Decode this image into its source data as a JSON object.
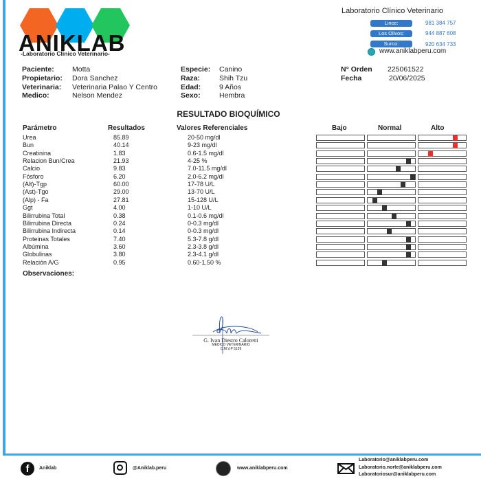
{
  "brand": {
    "name": "ANIKLAB",
    "tagline": "-Laboratorio Clinico Veterinario-",
    "hex_colors": [
      "#f26522",
      "#00aeef",
      "#22c55e"
    ]
  },
  "lab": {
    "title": "Laboratorio Clínico Veterinario",
    "branches": [
      {
        "label": "Lince:",
        "phone": "981 384 757"
      },
      {
        "label": "Los Olivos:",
        "phone": "944 887 608"
      },
      {
        "label": "Surco:",
        "phone": "920 634 733"
      }
    ],
    "website": "www.aniklabperu.com"
  },
  "patient": {
    "paciente_label": "Paciente:",
    "paciente": "Motta",
    "propietario_label": "Propietario:",
    "propietario": "Dora Sanchez",
    "veterinaria_label": "Veterinaria:",
    "veterinaria": "Veterinaria Palao Y Centro",
    "medico_label": "Medico:",
    "medico": "Nelson Mendez",
    "especie_label": "Especie:",
    "especie": "Canino",
    "raza_label": "Raza:",
    "raza": "Shih Tzu",
    "edad_label": "Edad:",
    "edad": "9 Años",
    "sexo_label": "Sexo:",
    "sexo": "Hembra",
    "orden_label": "N° Orden",
    "orden": "225061522",
    "fecha_label": "Fecha",
    "fecha": "20/06/2025"
  },
  "report": {
    "title": "RESULTADO BIOQUÍMICO",
    "headers": {
      "param": "Parámetro",
      "result": "Resultados",
      "ref": "Valores Referenciales",
      "low": "Bajo",
      "normal": "Normal",
      "high": "Alto"
    },
    "rows": [
      {
        "param": "Urea",
        "result": "85.89",
        "ref": "20-50 mg/dl",
        "level": "Alto",
        "marker": 0.78
      },
      {
        "param": "Bun",
        "result": "40.14",
        "ref": "9-23 mg/dl",
        "level": "Alto",
        "marker": 0.78
      },
      {
        "param": "Creatinina",
        "result": "1.83",
        "ref": "0.6-1.5 mg/dl",
        "level": "Alto",
        "marker": 0.26
      },
      {
        "param": "Relacion Bun/Crea",
        "result": "21.93",
        "ref": "4-25 %",
        "level": "Normal",
        "marker": 0.86
      },
      {
        "param": "Calcio",
        "result": "9.83",
        "ref": "7.0-11.5 mg/dl",
        "level": "Normal",
        "marker": 0.65
      },
      {
        "param": "Fósforo",
        "result": "6.20",
        "ref": "2.0-6.2 mg/dl",
        "level": "Normal",
        "marker": 0.95
      },
      {
        "param": "(Alt)-Tgp",
        "result": "60.00",
        "ref": "17-78 U/L",
        "level": "Normal",
        "marker": 0.75
      },
      {
        "param": "(Ast)-Tgo",
        "result": "29.00",
        "ref": "13-70 U/L",
        "level": "Normal",
        "marker": 0.25
      },
      {
        "param": "(Alp) - Fa",
        "result": "27.81",
        "ref": "15-128 U/L",
        "level": "Normal",
        "marker": 0.15
      },
      {
        "param": "Ggt",
        "result": "4.00",
        "ref": "1-10 U/L",
        "level": "Normal",
        "marker": 0.36
      },
      {
        "param": "Bilirrubina Total",
        "result": "0.38",
        "ref": "0.1-0.6 mg/dl",
        "level": "Normal",
        "marker": 0.56
      },
      {
        "param": "Bilirrubina Directa",
        "result": "0.24",
        "ref": "0-0.3 mg/dl",
        "level": "Normal",
        "marker": 0.86
      },
      {
        "param": "Bilirrubina Indirecta",
        "result": "0.14",
        "ref": "0-0.3 mg/dl",
        "level": "Normal",
        "marker": 0.46
      },
      {
        "param": "Proteinas Totales",
        "result": "7.40",
        "ref": "5.3-7.8 g/dl",
        "level": "Normal",
        "marker": 0.86
      },
      {
        "param": "Albúmina",
        "result": "3.60",
        "ref": "2.3-3.8 g/dl",
        "level": "Normal",
        "marker": 0.86
      },
      {
        "param": "Globulinas",
        "result": "3.80",
        "ref": "2.3-4.1 g/dl",
        "level": "Normal",
        "marker": 0.86
      },
      {
        "param": "Relación A/G",
        "result": "0.95",
        "ref": "0.60-1.50 %",
        "level": "Normal",
        "marker": 0.36
      }
    ],
    "observaciones_label": "Observaciones:"
  },
  "signature": {
    "name": "G. Ivan Diestro Caloretti",
    "title": "MEDICO VETERINARIO",
    "license": "C.M.V.P 5129"
  },
  "footer": {
    "facebook": "Aniklab",
    "instagram": "@Aniklab.peru",
    "website": "www.aniklabperu.com",
    "emails": [
      "Laboratorio@aniklabperu.com",
      "Laboratorio.norte@aniklabperu.com",
      "Laboratoriosur@aniklabperu.com"
    ]
  }
}
